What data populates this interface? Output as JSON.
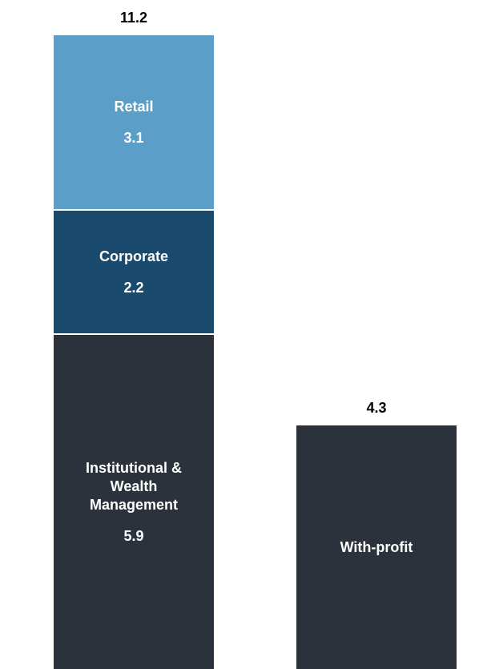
{
  "chart_data": {
    "type": "stacked_bar",
    "categories": [
      null,
      null
    ],
    "series": [
      {
        "name": "Institutional & Wealth Management",
        "color": "#2b323b",
        "values": [
          5.9,
          null
        ]
      },
      {
        "name": "Corporate",
        "color": "#1a4a6e",
        "values": [
          2.2,
          null
        ]
      },
      {
        "name": "Retail",
        "color": "#5b9ec7",
        "values": [
          3.1,
          null
        ]
      },
      {
        "name": "With-profit",
        "color": "#2b323b",
        "values": [
          null,
          4.3
        ]
      }
    ],
    "totals": [
      11.2,
      4.3
    ]
  }
}
